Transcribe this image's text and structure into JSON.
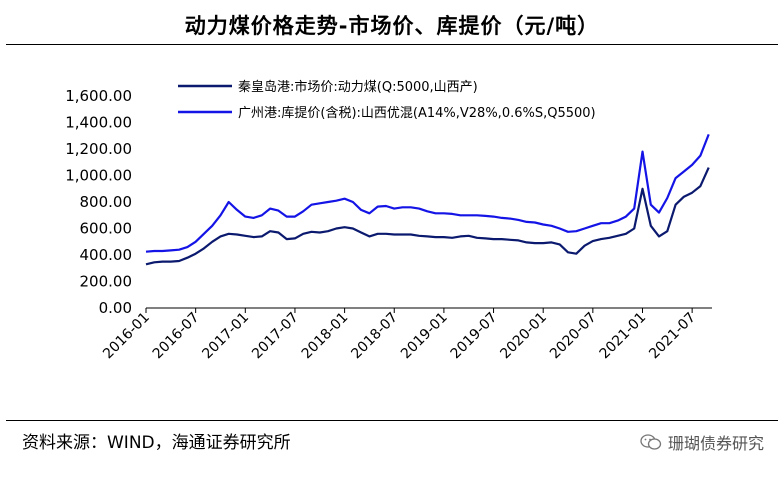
{
  "page": {
    "title": "动力煤价格走势-市场价、库提价（元/吨）",
    "source": "资料来源：WIND，海通证券研究所",
    "watermark": "珊瑚债券研究",
    "watermark_icon": "wechat-icon"
  },
  "chart_data": {
    "type": "line",
    "ylim": [
      0,
      1600
    ],
    "yticks": [
      "0.00",
      "200.00",
      "400.00",
      "600.00",
      "800.00",
      "1,000.00",
      "1,200.00",
      "1,400.00",
      "1,600.00"
    ],
    "xticks": [
      "2016-01",
      "2016-07",
      "2017-01",
      "2017-07",
      "2018-01",
      "2018-07",
      "2019-01",
      "2019-07",
      "2020-01",
      "2020-07",
      "2021-01",
      "2021-07"
    ],
    "grid": false,
    "legend_position": "top-left",
    "series": [
      {
        "name": "秦皇岛港:市场价:动力煤(Q:5000,山西产)",
        "color": "#0b1a6e",
        "points": [
          [
            "2016-01",
            330
          ],
          [
            "2016-02",
            345
          ],
          [
            "2016-03",
            350
          ],
          [
            "2016-04",
            350
          ],
          [
            "2016-05",
            355
          ],
          [
            "2016-06",
            380
          ],
          [
            "2016-07",
            410
          ],
          [
            "2016-08",
            450
          ],
          [
            "2016-09",
            500
          ],
          [
            "2016-10",
            540
          ],
          [
            "2016-11",
            560
          ],
          [
            "2016-12",
            555
          ],
          [
            "2017-01",
            545
          ],
          [
            "2017-02",
            535
          ],
          [
            "2017-03",
            540
          ],
          [
            "2017-04",
            580
          ],
          [
            "2017-05",
            570
          ],
          [
            "2017-06",
            520
          ],
          [
            "2017-07",
            525
          ],
          [
            "2017-08",
            560
          ],
          [
            "2017-09",
            575
          ],
          [
            "2017-10",
            570
          ],
          [
            "2017-11",
            580
          ],
          [
            "2017-12",
            600
          ],
          [
            "2018-01",
            610
          ],
          [
            "2018-02",
            600
          ],
          [
            "2018-03",
            570
          ],
          [
            "2018-04",
            540
          ],
          [
            "2018-05",
            560
          ],
          [
            "2018-06",
            560
          ],
          [
            "2018-07",
            555
          ],
          [
            "2018-08",
            555
          ],
          [
            "2018-09",
            555
          ],
          [
            "2018-10",
            545
          ],
          [
            "2018-11",
            540
          ],
          [
            "2018-12",
            535
          ],
          [
            "2019-01",
            535
          ],
          [
            "2019-02",
            530
          ],
          [
            "2019-03",
            540
          ],
          [
            "2019-04",
            545
          ],
          [
            "2019-05",
            530
          ],
          [
            "2019-06",
            525
          ],
          [
            "2019-07",
            520
          ],
          [
            "2019-08",
            520
          ],
          [
            "2019-09",
            515
          ],
          [
            "2019-10",
            510
          ],
          [
            "2019-11",
            495
          ],
          [
            "2019-12",
            490
          ],
          [
            "2020-01",
            490
          ],
          [
            "2020-02",
            495
          ],
          [
            "2020-03",
            480
          ],
          [
            "2020-04",
            420
          ],
          [
            "2020-05",
            410
          ],
          [
            "2020-06",
            470
          ],
          [
            "2020-07",
            505
          ],
          [
            "2020-08",
            520
          ],
          [
            "2020-09",
            530
          ],
          [
            "2020-10",
            545
          ],
          [
            "2020-11",
            560
          ],
          [
            "2020-12",
            600
          ],
          [
            "2021-01",
            900
          ],
          [
            "2021-02",
            620
          ],
          [
            "2021-03",
            540
          ],
          [
            "2021-04",
            580
          ],
          [
            "2021-05",
            780
          ],
          [
            "2021-06",
            840
          ],
          [
            "2021-07",
            870
          ],
          [
            "2021-08",
            920
          ],
          [
            "2021-09",
            1060
          ]
        ]
      },
      {
        "name": "广州港:库提价(含税):山西优混(A14%,V28%,0.6%S,Q5500)",
        "color": "#1414e6",
        "points": [
          [
            "2016-01",
            425
          ],
          [
            "2016-02",
            430
          ],
          [
            "2016-03",
            430
          ],
          [
            "2016-04",
            435
          ],
          [
            "2016-05",
            440
          ],
          [
            "2016-06",
            460
          ],
          [
            "2016-07",
            500
          ],
          [
            "2016-08",
            560
          ],
          [
            "2016-09",
            620
          ],
          [
            "2016-10",
            700
          ],
          [
            "2016-11",
            800
          ],
          [
            "2016-12",
            740
          ],
          [
            "2017-01",
            690
          ],
          [
            "2017-02",
            680
          ],
          [
            "2017-03",
            700
          ],
          [
            "2017-04",
            750
          ],
          [
            "2017-05",
            735
          ],
          [
            "2017-06",
            690
          ],
          [
            "2017-07",
            690
          ],
          [
            "2017-08",
            730
          ],
          [
            "2017-09",
            780
          ],
          [
            "2017-10",
            790
          ],
          [
            "2017-11",
            800
          ],
          [
            "2017-12",
            810
          ],
          [
            "2018-01",
            825
          ],
          [
            "2018-02",
            800
          ],
          [
            "2018-03",
            740
          ],
          [
            "2018-04",
            715
          ],
          [
            "2018-05",
            765
          ],
          [
            "2018-06",
            770
          ],
          [
            "2018-07",
            750
          ],
          [
            "2018-08",
            760
          ],
          [
            "2018-09",
            760
          ],
          [
            "2018-10",
            750
          ],
          [
            "2018-11",
            730
          ],
          [
            "2018-12",
            715
          ],
          [
            "2019-01",
            715
          ],
          [
            "2019-02",
            710
          ],
          [
            "2019-03",
            700
          ],
          [
            "2019-04",
            700
          ],
          [
            "2019-05",
            700
          ],
          [
            "2019-06",
            695
          ],
          [
            "2019-07",
            690
          ],
          [
            "2019-08",
            680
          ],
          [
            "2019-09",
            675
          ],
          [
            "2019-10",
            665
          ],
          [
            "2019-11",
            650
          ],
          [
            "2019-12",
            645
          ],
          [
            "2020-01",
            630
          ],
          [
            "2020-02",
            620
          ],
          [
            "2020-03",
            600
          ],
          [
            "2020-04",
            575
          ],
          [
            "2020-05",
            580
          ],
          [
            "2020-06",
            600
          ],
          [
            "2020-07",
            620
          ],
          [
            "2020-08",
            640
          ],
          [
            "2020-09",
            640
          ],
          [
            "2020-10",
            660
          ],
          [
            "2020-11",
            690
          ],
          [
            "2020-12",
            750
          ],
          [
            "2021-01",
            1180
          ],
          [
            "2021-02",
            780
          ],
          [
            "2021-03",
            720
          ],
          [
            "2021-04",
            830
          ],
          [
            "2021-05",
            980
          ],
          [
            "2021-06",
            1030
          ],
          [
            "2021-07",
            1080
          ],
          [
            "2021-08",
            1150
          ],
          [
            "2021-09",
            1310
          ]
        ]
      }
    ]
  }
}
